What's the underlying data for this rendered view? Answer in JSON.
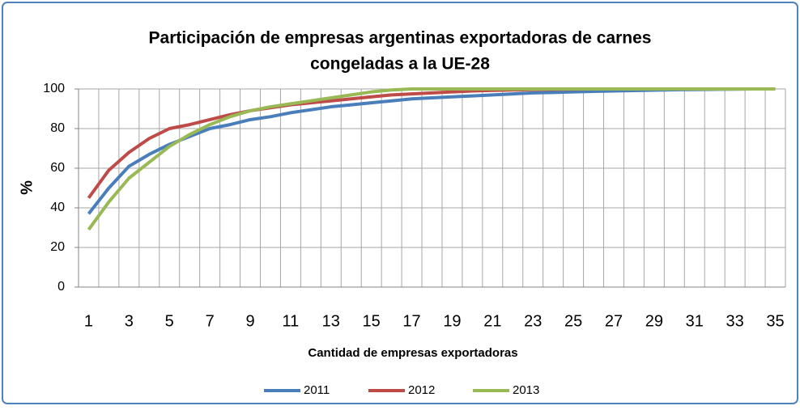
{
  "chart_data": {
    "type": "line",
    "title": [
      "Participación de empresas  argentinas exportadoras de carnes",
      "congeladas a la UE-28"
    ],
    "x_label": "Cantidad de empresas exportadoras",
    "y_label": "%",
    "categories": [
      1,
      null,
      3,
      null,
      5,
      null,
      7,
      null,
      9,
      null,
      11,
      null,
      13,
      null,
      15,
      null,
      17,
      null,
      19,
      null,
      21,
      null,
      23,
      null,
      25,
      null,
      27,
      null,
      29,
      null,
      31,
      null,
      33,
      null,
      35
    ],
    "series": [
      {
        "name": "2011",
        "color": "#4a7ebb",
        "values": [
          37,
          50,
          61,
          67,
          72,
          76,
          80,
          82,
          84.5,
          86,
          88,
          89.5,
          91,
          92,
          93,
          94,
          95,
          95.5,
          96,
          96.5,
          97,
          97.5,
          98,
          98.2,
          98.5,
          98.8,
          99,
          99.2,
          99.4,
          99.6,
          99.7,
          99.8,
          99.9,
          100,
          100
        ]
      },
      {
        "name": "2012",
        "color": "#be4b48",
        "values": [
          45,
          59,
          68,
          75,
          80,
          82,
          84.5,
          87,
          89,
          90.5,
          92,
          93,
          94,
          95,
          96,
          97,
          97.5,
          98,
          98.5,
          99,
          99.3,
          99.5,
          99.7,
          99.8,
          99.9,
          100,
          100,
          100,
          100,
          100,
          100,
          100,
          100,
          100,
          100
        ]
      },
      {
        "name": "2013",
        "color": "#98b954",
        "values": [
          29,
          43,
          55,
          63,
          71,
          77,
          82,
          86,
          89,
          91,
          92.5,
          94,
          95.5,
          97,
          98.5,
          99.5,
          100,
          100,
          100,
          100,
          100,
          100,
          100,
          100,
          100,
          100,
          100,
          100,
          100,
          100,
          100,
          100,
          100,
          100,
          100
        ]
      }
    ],
    "ylim": [
      0,
      100
    ],
    "yticks": [
      0,
      20,
      40,
      60,
      80,
      100
    ],
    "grid": true,
    "legend": "bottom"
  }
}
